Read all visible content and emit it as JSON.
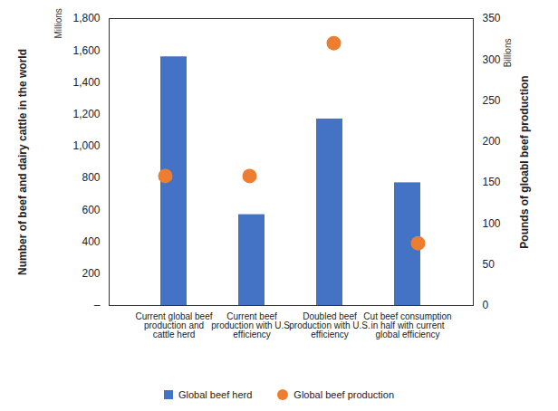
{
  "chart_data": {
    "type": "bar",
    "categories": [
      "Current global beef production and cattle herd",
      "Current beef production with U.S. efficiency",
      "Doubled beef production with U.S. efficiency",
      "Cut beef consumption in half with current global efficiency"
    ],
    "y_label": "Number of beef and dairy cattle in the world",
    "y_units_label": "Millions",
    "y2_label": "Pounds of gloabl beef production",
    "y2_units_label": "Billions",
    "series": [
      {
        "name": "Global beef herd",
        "type": "bar",
        "color": "#4472c4",
        "values": [
          1560,
          570,
          1170,
          770
        ]
      },
      {
        "name": "Global beef production",
        "type": "scatter",
        "marker": "circle",
        "color": "#ed7d31",
        "axis": "y2",
        "values": [
          158,
          158,
          320,
          76
        ]
      }
    ],
    "ylim": [
      0,
      1800
    ],
    "yticks": [
      {
        "value": 0,
        "label": "–"
      },
      200,
      400,
      600,
      800,
      {
        "value": 1000,
        "label": "1,000"
      },
      {
        "value": 1200,
        "label": "1,200"
      },
      {
        "value": 1400,
        "label": "1,400"
      },
      {
        "value": 1600,
        "label": "1,600"
      },
      {
        "value": 1800,
        "label": "1,800"
      }
    ],
    "y2lim": [
      0,
      350
    ],
    "y2ticks": [
      0,
      50,
      100,
      150,
      200,
      250,
      300,
      350
    ],
    "legend": "bottom",
    "grid": false
  }
}
